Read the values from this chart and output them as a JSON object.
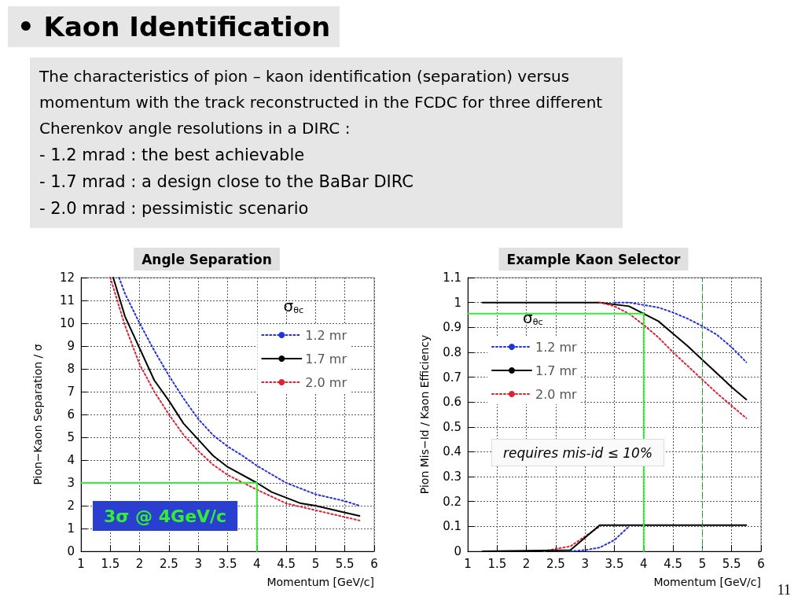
{
  "chart_data": [
    {
      "type": "other",
      "title": "• Kaon Identification",
      "annotations": [
        "The characteristics of pion – kaon identification (separation) versus momentum with the track reconstructed in the FCDC for three different Cherenkov angle resolutions in a DIRC :",
        "- 1.2 mrad  : the best achievable",
        "- 1.7 mrad  : a design close to the BaBar DIRC",
        "- 2.0 mrad : pessimistic scenario",
        "11"
      ]
    },
    {
      "type": "line",
      "title": "Angle Separation",
      "xlabel": "Momentum [GeV/c]",
      "ylabel": "Pion−Kaon Separation / σ",
      "legend_title": "σ$_{θc}$",
      "xlim": [
        1,
        6
      ],
      "xticks": [
        1,
        1.5,
        2,
        2.5,
        3,
        3.5,
        4,
        4.5,
        5,
        5.5,
        6
      ],
      "ylim": [
        0,
        12
      ],
      "yticks": [
        0,
        1,
        2,
        3,
        4,
        5,
        6,
        7,
        8,
        9,
        10,
        11,
        12
      ],
      "grid": true,
      "legend": "top right",
      "marker": "none",
      "annotations": [
        "3σ @ 4GeV/c"
      ],
      "series": [
        {
          "name": "1.2 mr",
          "color": "#2233dd",
          "line_style": "dotted",
          "x": [
            1.65,
            1.75,
            2,
            2.25,
            2.5,
            2.75,
            3,
            3.25,
            3.5,
            3.75,
            4,
            4.5,
            5,
            5.5,
            5.75
          ],
          "values": [
            12,
            11.3,
            10,
            8.8,
            7.7,
            6.7,
            5.8,
            5.1,
            4.6,
            4.2,
            3.75,
            3.0,
            2.5,
            2.2,
            2.0
          ]
        },
        {
          "name": "1.7 mr",
          "color": "#000000",
          "line_style": "solid",
          "x": [
            1.55,
            1.75,
            2,
            2.25,
            2.5,
            2.75,
            3,
            3.25,
            3.5,
            4,
            4.25,
            4.5,
            4.75,
            5,
            5.5,
            5.75
          ],
          "values": [
            12,
            10.3,
            8.9,
            7.5,
            6.6,
            5.6,
            4.9,
            4.2,
            3.7,
            3.0,
            2.6,
            2.35,
            2.1,
            2.0,
            1.7,
            1.55
          ]
        },
        {
          "name": "2.0 mr",
          "color": "#dd2233",
          "line_style": "dotted",
          "x": [
            1.5,
            1.75,
            2,
            2.25,
            2.5,
            2.75,
            3,
            3.25,
            3.5,
            4,
            4.5,
            5,
            5.5,
            5.75
          ],
          "values": [
            12,
            9.9,
            8.2,
            7.0,
            6.0,
            5.1,
            4.4,
            3.8,
            3.35,
            2.7,
            2.1,
            1.8,
            1.5,
            1.35
          ]
        },
        {
          "color": "#33ee33",
          "line_style": "solid",
          "x": [
            1,
            4,
            4
          ],
          "values": [
            3,
            3,
            0
          ]
        }
      ]
    },
    {
      "type": "line",
      "title": "Example Kaon Selector",
      "xlabel": "Momentum [GeV/c]",
      "ylabel": "Pion Mis−Id / Kaon Efficiency",
      "legend_title": "σ$_{θc}$",
      "xlim": [
        1,
        6
      ],
      "xticks": [
        1,
        1.5,
        2,
        2.5,
        3,
        3.5,
        4,
        4.5,
        5,
        5.5,
        6
      ],
      "ylim": [
        0,
        1.1
      ],
      "yticks": [
        0,
        0.1,
        0.2,
        0.3,
        0.4,
        0.5,
        0.6,
        0.7,
        0.8,
        0.9,
        1,
        1.1
      ],
      "grid": true,
      "legend": "top left",
      "marker": "none",
      "annotations": [
        "requires mis-id ≤ 10%"
      ],
      "ref_lines": [
        {
          "axis": "x",
          "value": 5,
          "color": "#33aa33",
          "line_style": "dashed"
        }
      ],
      "series": [
        {
          "name": "1.2 mr",
          "color": "#2233dd",
          "line_style": "dotted",
          "x": [
            3.5,
            3.75,
            4,
            4.25,
            4.5,
            4.75,
            5,
            5.25,
            5.5,
            5.75
          ],
          "values": [
            1.0,
            1.0,
            0.99,
            0.98,
            0.96,
            0.935,
            0.905,
            0.87,
            0.82,
            0.76
          ]
        },
        {
          "name": "1.7 mr",
          "color": "#000000",
          "line_style": "solid",
          "x": [
            1.25,
            3.25,
            3.75,
            4,
            4.25,
            4.5,
            4.75,
            5,
            5.25,
            5.5,
            5.75
          ],
          "values": [
            1.0,
            1.0,
            0.985,
            0.955,
            0.925,
            0.875,
            0.825,
            0.77,
            0.715,
            0.66,
            0.61
          ]
        },
        {
          "name": "2.0 mr",
          "color": "#dd2233",
          "line_style": "dotted",
          "x": [
            3.25,
            3.5,
            3.75,
            4,
            4.25,
            4.5,
            4.75,
            5,
            5.25,
            5.5,
            5.75
          ],
          "values": [
            1.0,
            0.985,
            0.955,
            0.91,
            0.86,
            0.8,
            0.745,
            0.69,
            0.635,
            0.585,
            0.535
          ]
        },
        {
          "color": "#2233dd",
          "line_style": "dotted",
          "x": [
            2.75,
            3,
            3.25,
            3.5,
            3.75
          ],
          "values": [
            0,
            0.005,
            0.015,
            0.045,
            0.1
          ]
        },
        {
          "color": "#dd2233",
          "line_style": "dotted",
          "x": [
            2.3,
            2.5,
            2.75,
            3,
            3.25
          ],
          "values": [
            0,
            0.01,
            0.02,
            0.06,
            0.1
          ]
        },
        {
          "color": "#000000",
          "line_style": "solid",
          "x": [
            1.25,
            2.75,
            3.25,
            5.75
          ],
          "values": [
            0,
            0.005,
            0.105,
            0.105
          ]
        },
        {
          "color": "#33ee33",
          "line_style": "solid",
          "x": [
            1,
            4,
            4
          ],
          "values": [
            0.955,
            0.955,
            0
          ]
        }
      ]
    }
  ]
}
